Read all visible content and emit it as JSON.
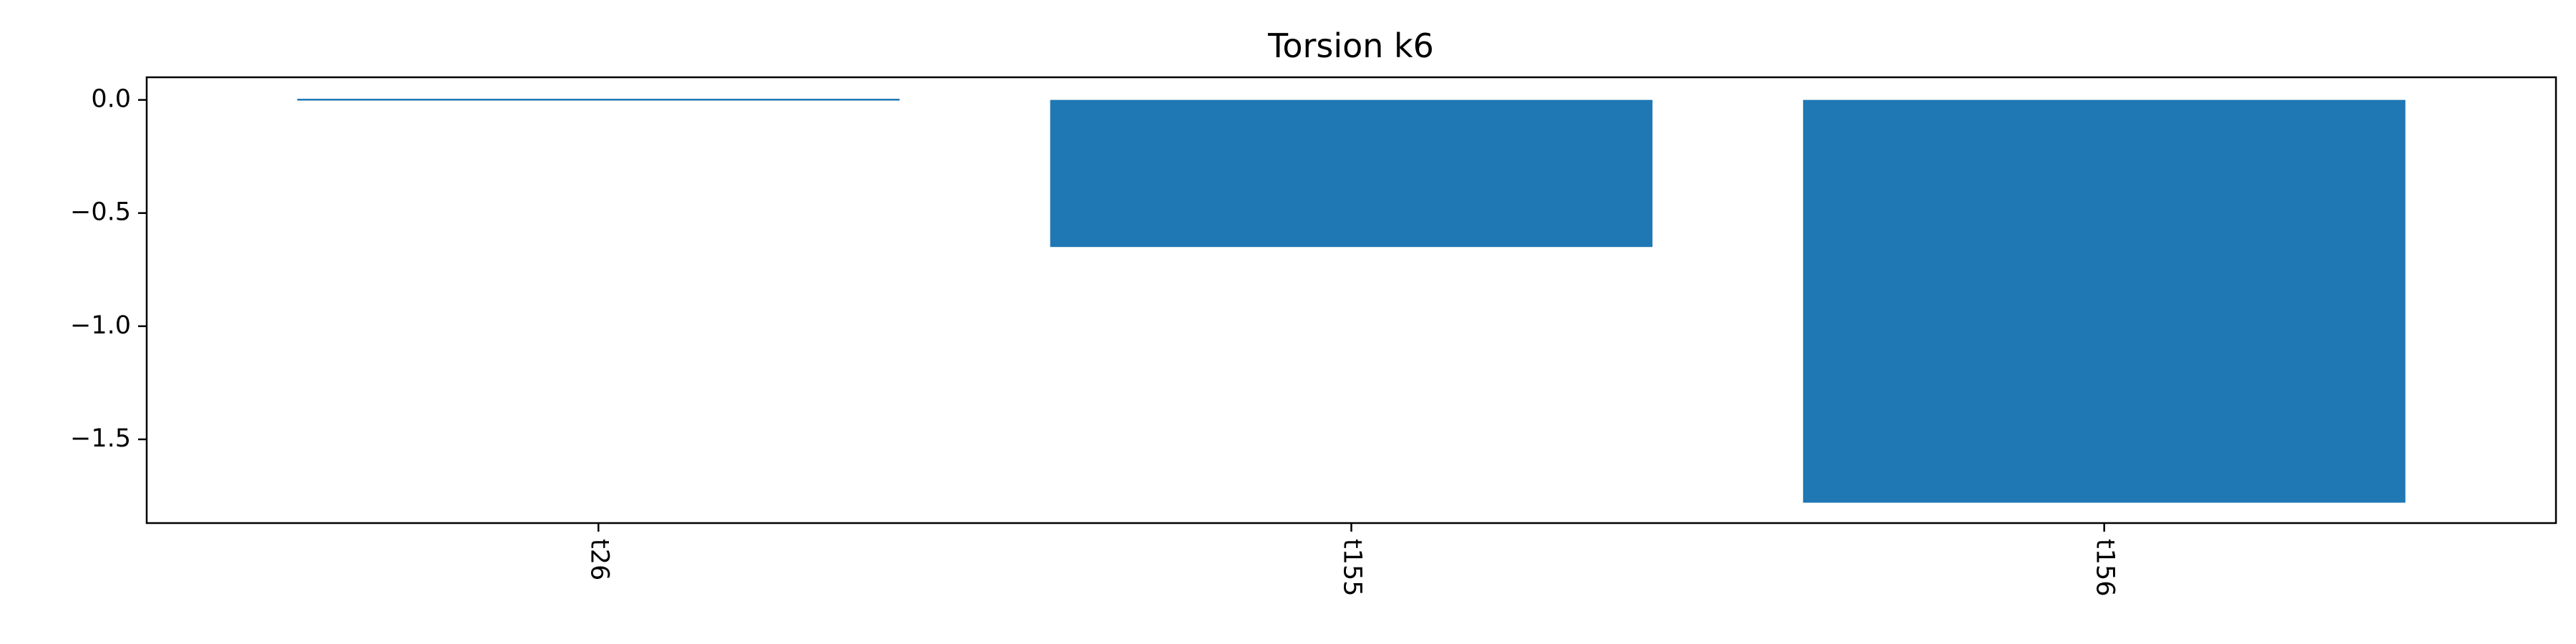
{
  "chart_data": {
    "type": "bar",
    "title": "Torsion k6",
    "xlabel": "",
    "ylabel": "",
    "categories": [
      "t26",
      "t155",
      "t156"
    ],
    "values": [
      0.005,
      -0.65,
      -1.78
    ],
    "ylim": [
      -1.87,
      0.1
    ],
    "yticks": [
      0.0,
      -0.5,
      -1.0,
      -1.5
    ],
    "ytick_labels": [
      "0.0",
      "−0.5",
      "−1.0",
      "−1.5"
    ],
    "bar_color": "#1f77b4",
    "grid": false,
    "legend": "none"
  }
}
